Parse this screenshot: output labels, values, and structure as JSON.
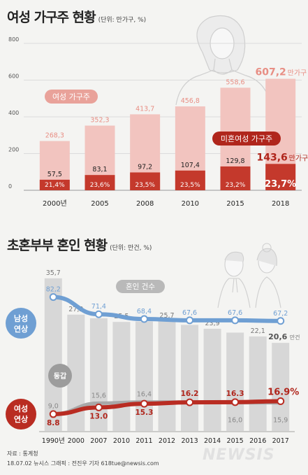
{
  "chart_data": [
    {
      "type": "bar",
      "title": "여성 가구주 현황",
      "unit": "(단위: 만가구, %)",
      "categories": [
        "2000년",
        "2005",
        "2008",
        "2010",
        "2015",
        "2018"
      ],
      "ylim": [
        0,
        800
      ],
      "yticks": [
        "0",
        "200",
        "400",
        "600",
        "800"
      ],
      "series": [
        {
          "name": "여성 가구주",
          "values": [
            268.3,
            352.3,
            413.7,
            456.8,
            558.6,
            607.2
          ],
          "labels": [
            "268,3",
            "352,3",
            "413,7",
            "456,8",
            "558,6",
            "607,2"
          ],
          "color": "#f2c4bf"
        },
        {
          "name": "미혼여성 가구주",
          "values": [
            57.5,
            83.1,
            97.2,
            107.4,
            129.8,
            143.6
          ],
          "labels": [
            "57,5",
            "83,1",
            "97,2",
            "107,4",
            "129,8",
            "143,6"
          ],
          "shares": [
            "21,4%",
            "23,6%",
            "23,5%",
            "23,5%",
            "23,2%",
            "23,7%"
          ],
          "color": "#c4392c"
        }
      ],
      "last_unit": "만가구"
    },
    {
      "type": "bar+line",
      "title": "초혼부부 혼인 현황",
      "unit": "(단위: 만건, %)",
      "categories": [
        "1990년",
        "2000",
        "2007",
        "2010",
        "2011",
        "2012",
        "2013",
        "2014",
        "2015",
        "2016",
        "2017"
      ],
      "bars": {
        "name": "혼인 건수",
        "values": [
          35.7,
          27.2,
          null,
          25.5,
          null,
          25.7,
          null,
          23.9,
          null,
          22.1,
          20.6
        ],
        "labels": [
          "35,7",
          "27,2",
          "",
          "25,5",
          "",
          "25,7",
          "",
          "23,9",
          "",
          "22,1",
          "20,6"
        ],
        "last_unit": "만건",
        "color": "#d7d7d7"
      },
      "lines": [
        {
          "name": "남성 연상",
          "x": [
            "1990년",
            "2000",
            "2007",
            "2010",
            "2011",
            "2012",
            "2013",
            "2014",
            "2015",
            "2016",
            "2017"
          ],
          "values": [
            82.2,
            null,
            71.4,
            null,
            68.4,
            null,
            67.6,
            null,
            67.6,
            null,
            67.2
          ],
          "labels": [
            "82,2",
            "",
            "71,4",
            "",
            "68,4",
            "",
            "67,6",
            "",
            "67,6",
            "",
            "67,2"
          ],
          "color": "#6f9fd3"
        },
        {
          "name": "동갑",
          "x": [
            "1990년",
            "2000",
            "2007",
            "2010",
            "2011",
            "2012",
            "2013",
            "2014",
            "2015",
            "2016",
            "2017"
          ],
          "values": [
            9.0,
            null,
            15.6,
            null,
            16.4,
            null,
            null,
            null,
            16.0,
            null,
            15.9
          ],
          "labels": [
            "9,0",
            "",
            "15,6",
            "",
            "16,4",
            "",
            "",
            "",
            "16,0",
            "",
            "15,9"
          ],
          "color": "#a8a8a8"
        },
        {
          "name": "여성 연상",
          "x": [
            "1990년",
            "2000",
            "2007",
            "2010",
            "2011",
            "2012",
            "2013",
            "2014",
            "2015",
            "2016",
            "2017"
          ],
          "values": [
            8.8,
            null,
            13.0,
            null,
            15.3,
            null,
            16.2,
            null,
            16.3,
            null,
            16.9
          ],
          "labels": [
            "8.8",
            "",
            "13.0",
            "",
            "15.3",
            "",
            "16.2",
            "",
            "16.3",
            "",
            "16.9%"
          ],
          "color": "#b92c22"
        }
      ]
    }
  ],
  "footer": {
    "source": "자료 : 통계청",
    "byline": "18.07.02 뉴시스 그래픽 : 전진우 기자 618tue@newsis.com",
    "logo": "NEWSIS"
  }
}
